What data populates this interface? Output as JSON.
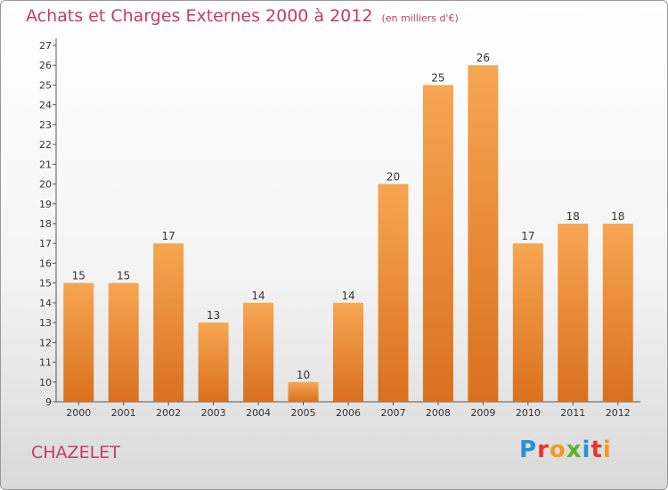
{
  "header": {
    "title": "Achats et Charges Externes 2000 à 2012",
    "subtitle": "(en milliers d'€)"
  },
  "footer": {
    "place": "CHAZELET",
    "logo_letters": [
      "P",
      "r",
      "o",
      "x",
      "i",
      "t",
      "i"
    ],
    "logo_colors": [
      "#2a8fd6",
      "#e8342c",
      "#f39a1f",
      "#5ab42c",
      "#2a8fd6",
      "#e8342c",
      "#f39a1f"
    ]
  },
  "colors": {
    "bar_light": "#f7a652",
    "bar_dark": "#d9701e",
    "title": "#c8386b"
  },
  "chart_data": {
    "type": "bar",
    "title": "Achats et Charges Externes 2000 à 2012",
    "subtitle": "(en milliers d'€)",
    "categories": [
      "2000",
      "2001",
      "2002",
      "2003",
      "2004",
      "2005",
      "2006",
      "2007",
      "2008",
      "2009",
      "2010",
      "2011",
      "2012"
    ],
    "values": [
      15,
      15,
      17,
      13,
      14,
      10,
      14,
      20,
      25,
      26,
      17,
      18,
      18
    ],
    "ylim": [
      9,
      27
    ],
    "yticks": [
      9,
      10,
      11,
      12,
      13,
      14,
      15,
      16,
      17,
      18,
      19,
      20,
      21,
      22,
      23,
      24,
      25,
      26,
      27
    ],
    "grid": false,
    "data_labels": true
  }
}
